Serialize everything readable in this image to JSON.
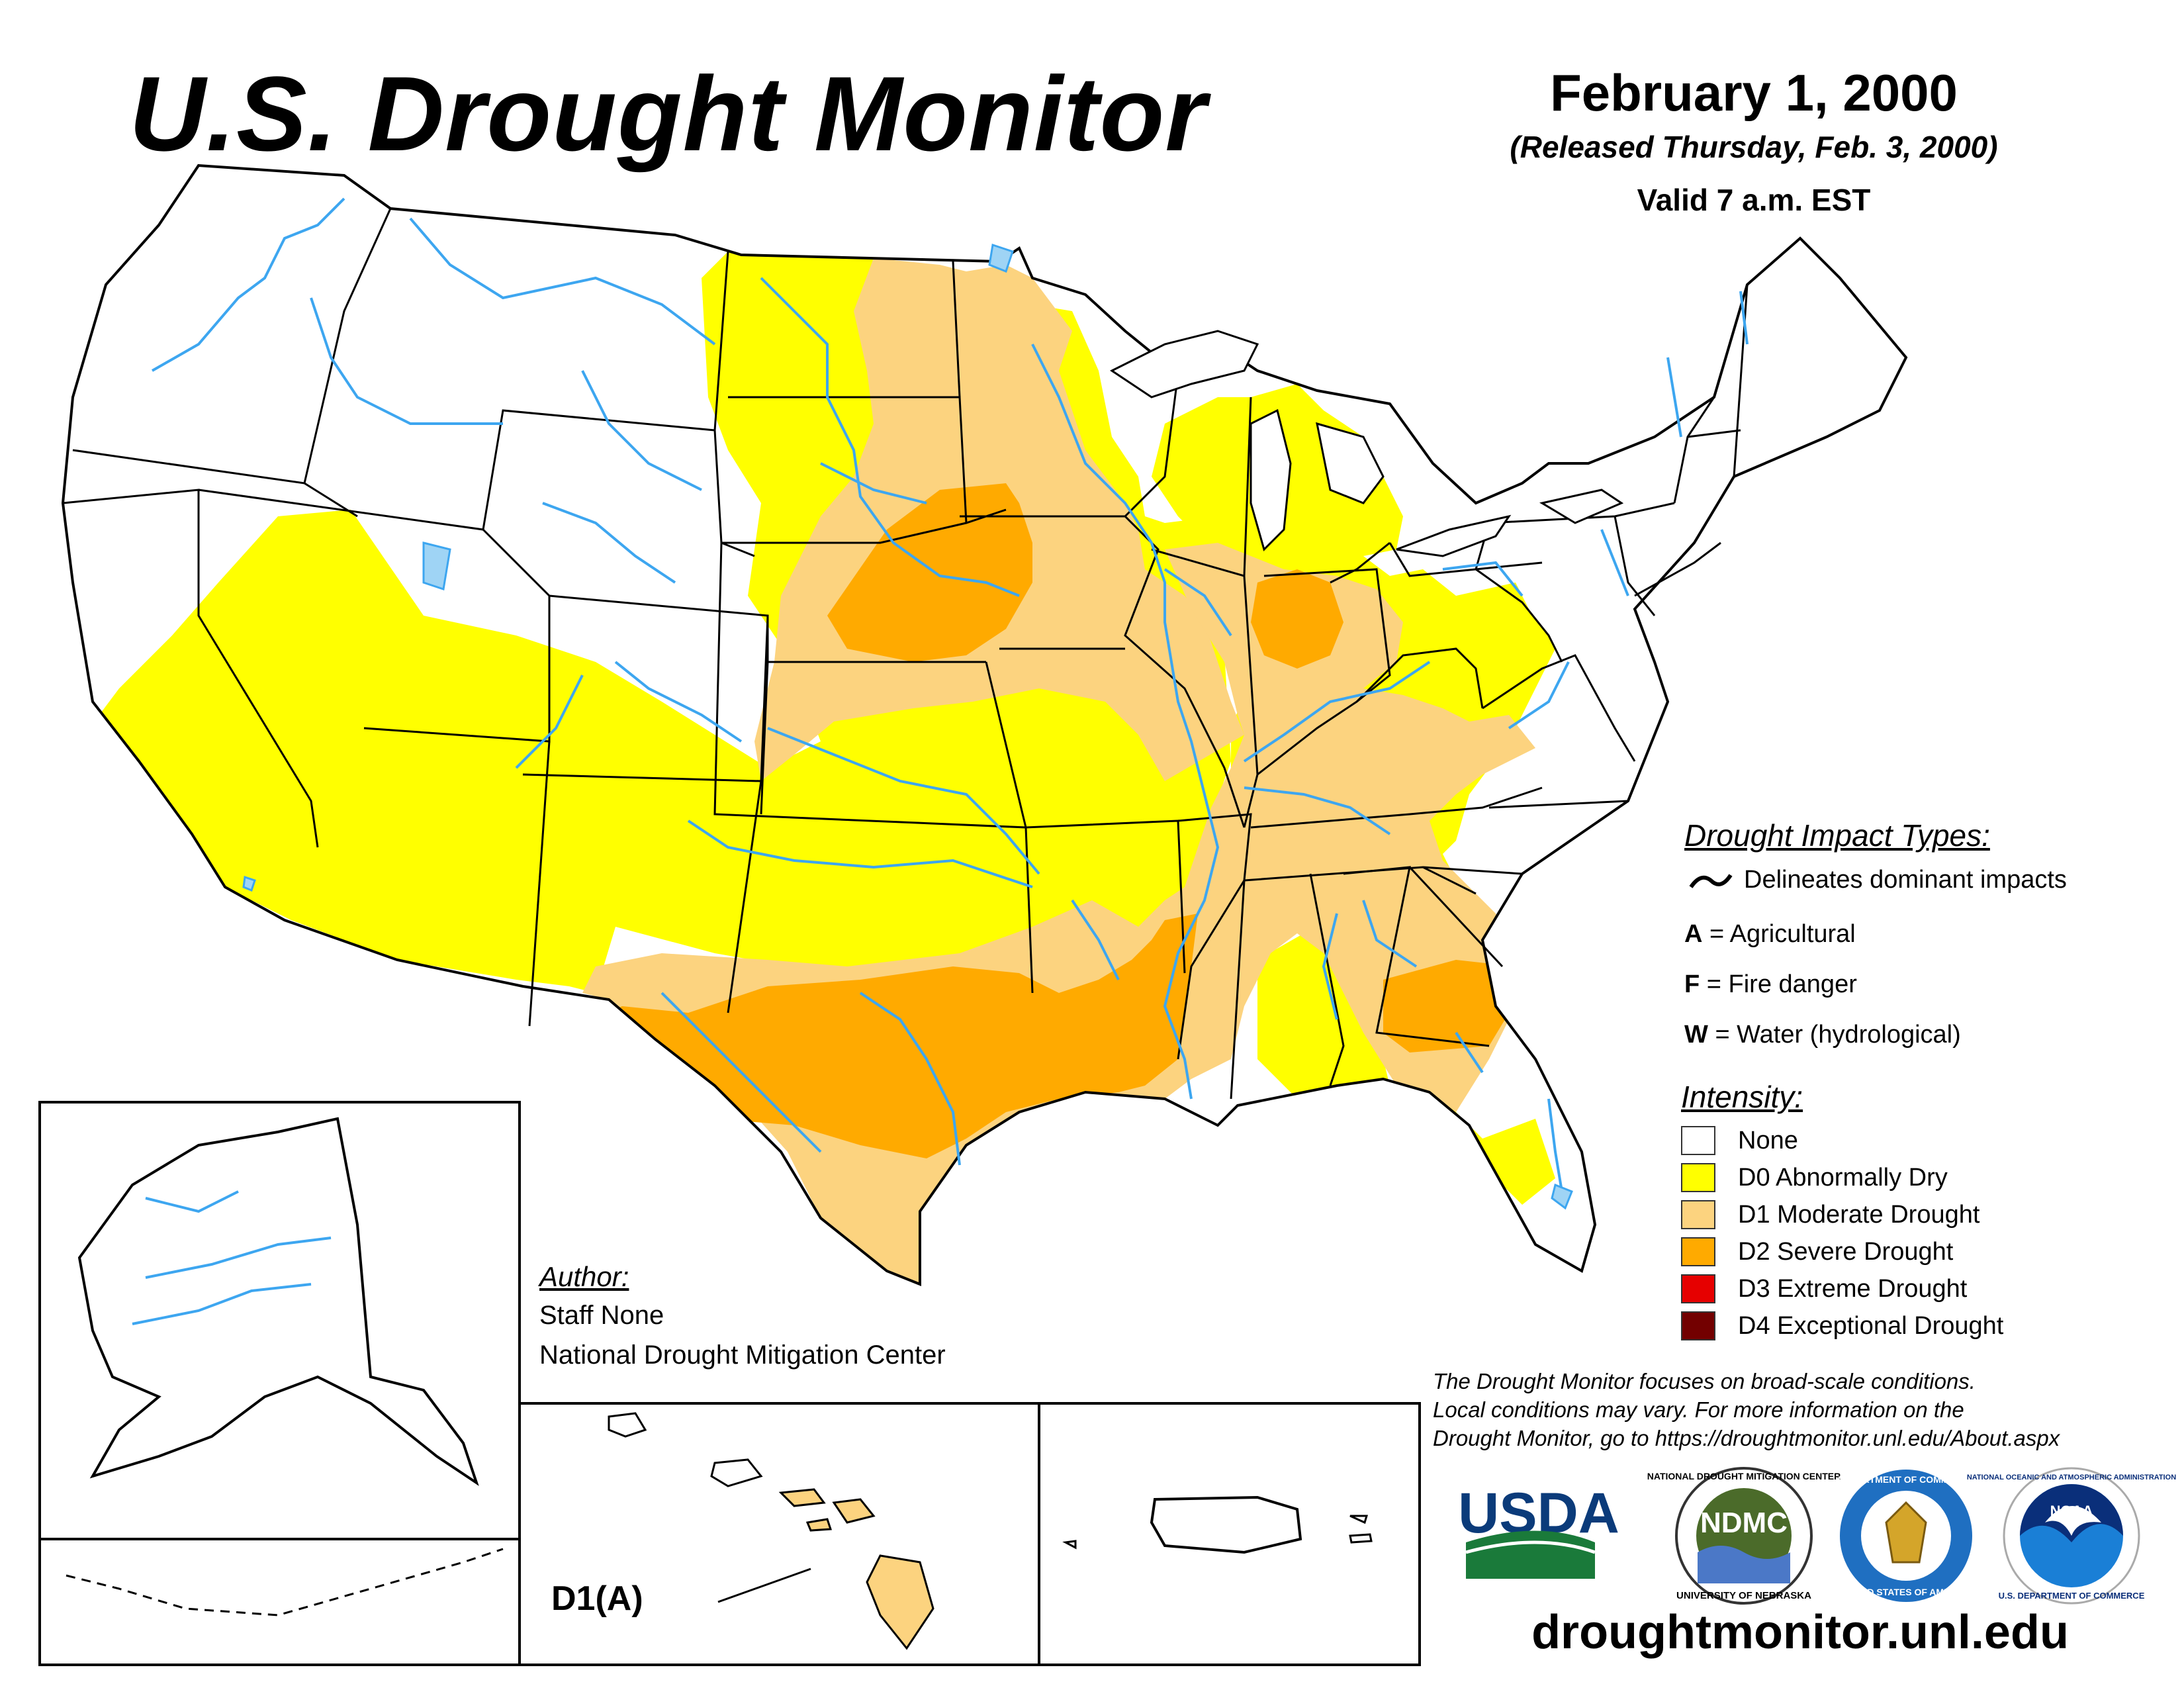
{
  "header": {
    "title": "U.S. Drought Monitor",
    "date": "February 1, 2000",
    "released": "(Released Thursday, Feb. 3, 2000)",
    "valid": "Valid 7 a.m. EST"
  },
  "impact_legend": {
    "heading": "Drought Impact Types:",
    "delineates": "Delineates dominant impacts",
    "items": [
      {
        "code": "A",
        "label": "= Agricultural"
      },
      {
        "code": "F",
        "label": "= Fire danger"
      },
      {
        "code": "W",
        "label": "= Water (hydrological)"
      }
    ]
  },
  "intensity_legend": {
    "heading": "Intensity:",
    "items": [
      {
        "label": "None",
        "color": "#ffffff"
      },
      {
        "label": "D0 Abnormally Dry",
        "color": "#ffff00"
      },
      {
        "label": "D1 Moderate Drought",
        "color": "#fcd37f"
      },
      {
        "label": "D2 Severe Drought",
        "color": "#ffaa00"
      },
      {
        "label": "D3 Extreme Drought",
        "color": "#e60000"
      },
      {
        "label": "D4 Exceptional Drought",
        "color": "#730000"
      }
    ]
  },
  "author": {
    "heading": "Author:",
    "name": "Staff None",
    "org": "National Drought Mitigation Center"
  },
  "hawaii_label": "D1(A)",
  "footnote": {
    "line1": "The Drought Monitor focuses on broad-scale conditions.",
    "line2": "Local conditions may vary. For more information on the",
    "line3": "Drought Monitor, go to https://droughtmonitor.unl.edu/About.aspx"
  },
  "logos": {
    "usda": "USDA",
    "ndmc": "NDMC",
    "ndmc_ring_top": "NATIONAL DROUGHT MITIGATION CENTER",
    "ndmc_ring_bottom": "UNIVERSITY OF NEBRASKA",
    "commerce_ring_top": "DEPARTMENT OF COMMERCE",
    "commerce_ring_bottom": "UNITED STATES OF AMERICA",
    "noaa": "NOAA",
    "noaa_ring_top": "NATIONAL OCEANIC AND ATMOSPHERIC ADMINISTRATION",
    "noaa_ring_bottom": "U.S. DEPARTMENT OF COMMERCE"
  },
  "url": "droughtmonitor.unl.edu",
  "colors": {
    "d0": "#ffff00",
    "d1": "#fcd37f",
    "d2": "#ffaa00",
    "water": "#3da6f0",
    "lake": "#9fd4f5"
  }
}
